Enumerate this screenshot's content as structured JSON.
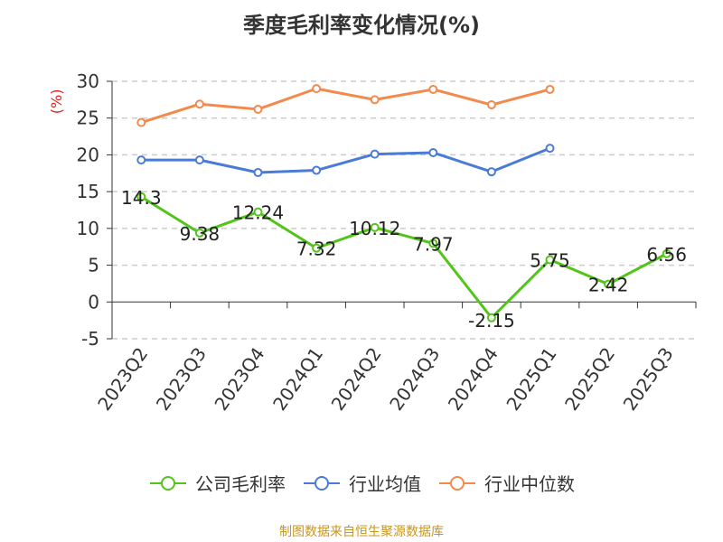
{
  "chart_data": {
    "type": "line",
    "title": "季度毛利率变化情况(%)",
    "ylabel": "(%)",
    "ylim": [
      -5,
      30
    ],
    "yticks": [
      -5,
      0,
      5,
      10,
      15,
      20,
      25,
      30
    ],
    "categories": [
      "2023Q2",
      "2023Q3",
      "2023Q4",
      "2024Q1",
      "2024Q2",
      "2024Q3",
      "2024Q4",
      "2025Q1",
      "2025Q2",
      "2025Q3"
    ],
    "grid": true,
    "legend_position": "bottom",
    "series": [
      {
        "name": "公司毛利率",
        "color": "#52c41a",
        "labeled": true,
        "values": [
          14.3,
          9.38,
          12.24,
          7.32,
          10.12,
          7.97,
          -2.15,
          5.75,
          2.42,
          6.56
        ],
        "labels": [
          "14.3",
          "9.38",
          "12.24",
          "7.32",
          "10.12",
          "7.97",
          "-2.15",
          "5.75",
          "2.42",
          "6.56"
        ]
      },
      {
        "name": "行业均值",
        "color": "#4a7bd6",
        "labeled": false,
        "values": [
          19.3,
          19.3,
          17.6,
          17.9,
          20.1,
          20.3,
          17.7,
          20.9,
          null,
          null
        ]
      },
      {
        "name": "行业中位数",
        "color": "#f4894c",
        "labeled": false,
        "values": [
          24.4,
          26.9,
          26.2,
          29.0,
          27.5,
          28.9,
          26.8,
          28.9,
          null,
          null
        ]
      }
    ]
  },
  "footer": "制图数据来自恒生聚源数据库"
}
